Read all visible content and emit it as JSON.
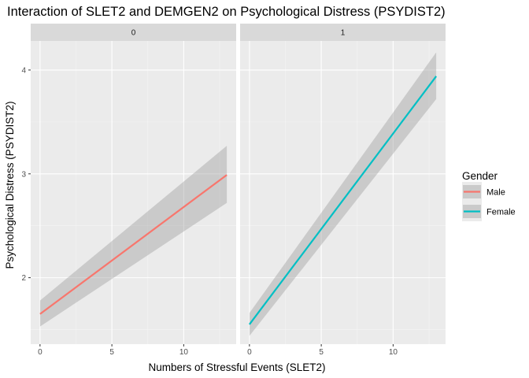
{
  "chart_data": {
    "type": "line",
    "title": "Interaction of SLET2 and DEMGEN2 on Psychological Distress (PSYDIST2)",
    "xlabel": "Numbers of Stressful Events (SLET2)",
    "ylabel": "Psychological Distress (PSYDIST2)",
    "xlim": [
      -0.65,
      13.65
    ],
    "ylim": [
      1.36,
      4.28
    ],
    "x_ticks": [
      0,
      5,
      10
    ],
    "y_ticks": [
      2,
      3,
      4
    ],
    "grid": true,
    "legend": {
      "title": "Gender",
      "position": "right",
      "entries": [
        {
          "label": "Male",
          "color": "#F8766D"
        },
        {
          "label": "Female",
          "color": "#00BFC4"
        }
      ]
    },
    "panels": [
      {
        "strip": "0",
        "series": [
          {
            "name": "Male",
            "color": "#F8766D",
            "x": [
              0,
              13
            ],
            "y": [
              1.65,
              2.99
            ],
            "ci_lower": [
              1.53,
              2.72
            ],
            "ci_upper": [
              1.78,
              3.27
            ]
          }
        ]
      },
      {
        "strip": "1",
        "series": [
          {
            "name": "Female",
            "color": "#00BFC4",
            "x": [
              0,
              13
            ],
            "y": [
              1.55,
              3.94
            ],
            "ci_lower": [
              1.44,
              3.72
            ],
            "ci_upper": [
              1.66,
              4.17
            ]
          }
        ]
      }
    ]
  }
}
